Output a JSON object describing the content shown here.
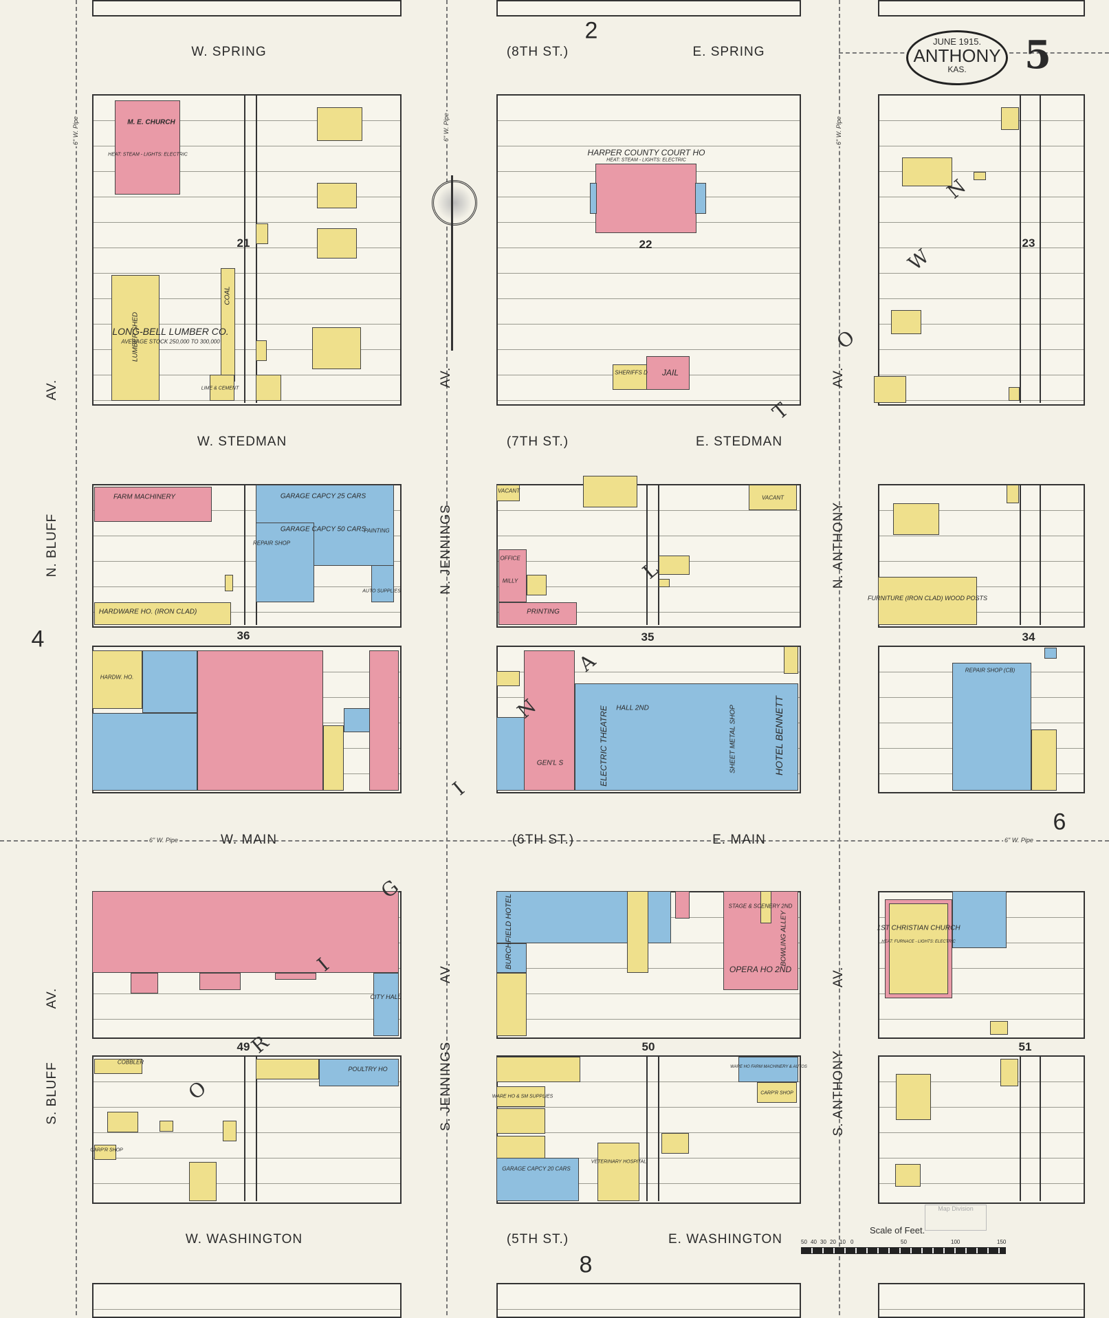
{
  "title": {
    "date": "JUNE 1915.",
    "city": "ANTHONY",
    "state": "KAS.",
    "sheet_number": "5"
  },
  "streets": {
    "w_spring": "W. SPRING",
    "spring_alt": "(8TH ST.)",
    "e_spring": "E. SPRING",
    "w_stedman": "W. STEDMAN",
    "stedman_alt": "(7TH ST.)",
    "e_stedman": "E. STEDMAN",
    "w_main": "W. MAIN",
    "main_alt": "(6TH ST.)",
    "e_main": "E. MAIN",
    "w_washington": "W. WASHINGTON",
    "washington_alt": "(5TH ST.)",
    "e_washington": "E. WASHINGTON",
    "av": "AV.",
    "n_bluff": "N. BLUFF",
    "s_bluff": "S. BLUFF",
    "n_jennings": "N. JENNINGS",
    "s_jennings": "S. JENNINGS",
    "n_anthony": "N. ANTHONY",
    "s_anthony": "S. ANTHONY"
  },
  "adjoining_sheets": [
    "2",
    "4",
    "6",
    "8"
  ],
  "blocks": [
    "21",
    "22",
    "23",
    "36",
    "35",
    "34",
    "49",
    "50",
    "51"
  ],
  "overlay_letters": [
    "O",
    "R",
    "I",
    "G",
    "I",
    "N",
    "A",
    "L",
    "T",
    "O",
    "W",
    "N"
  ],
  "water_pipe": "6\" W. Pipe",
  "buildings": {
    "church": "M. E. CHURCH",
    "church_heat": "HEAT: STEAM - LIGHTS: ELECTRIC",
    "lumber": "LONG-BELL LUMBER CO.",
    "lumber_stock": "AVERAGE STOCK 250,000 TO 300,000",
    "lumber_shed": "LUMBER SHED",
    "coal": "COAL",
    "lime_cement": "LIME & CEMENT",
    "courthouse": "HARPER COUNTY COURT HO",
    "courthouse_heat": "HEAT: STEAM - LIGHTS: ELECTRIC",
    "jail": "JAIL",
    "sheriffs": "SHERIFFS D",
    "farm_machinery": "FARM MACHINERY",
    "hardware_ironclad": "HARDWARE HO. (IRON CLAD)",
    "garage_25": "GARAGE CAPCY 25 CARS",
    "garage_50": "GARAGE CAPCY 50 CARS",
    "repair_shop": "REPAIR SHOP",
    "painting": "PAINTING",
    "auto_supplies": "AUTO SUPPLIES",
    "vacant": "VACANT",
    "printing": "PRINTING",
    "office": "OFFICE",
    "milly": "MILLY",
    "furniture": "FURNITURE (IRON CLAD) WOOD POSTS",
    "hardware": "HARDW. HO.",
    "hall": "HALL 2ND",
    "electric_theatre": "ELECTRIC THEATRE",
    "gen_s": "GEN'L S",
    "sheet_metal": "SHEET METAL SHOP",
    "hotel_bennett": "HOTEL BENNETT",
    "repair_shop_cb": "REPAIR SHOP (CB)",
    "burchfield": "BURCHFIELD HOTEL",
    "opera": "OPERA HO 2ND",
    "stage": "STAGE & SCENERY 2ND",
    "bowling": "BOWLING ALLEY",
    "christian_church": "1ST CHRISTIAN CHURCH",
    "christian_heat": "HEAT: FURNACE - LIGHTS: ELECTRIC",
    "city_hall": "CITY HALL",
    "poultry": "POULTRY HO",
    "cobbler": "COBBLER",
    "carp_shop": "CARP'R SHOP",
    "garage_20": "GARAGE CAPCY 20 CARS",
    "veterinary": "VETERINARY HOSPITAL",
    "ware_ho": "WARE HO & SM SUPPLIES",
    "farm_mach_ho": "WARE HO FARM MACHINERY & AUTOS"
  },
  "scale": {
    "title": "Scale of Feet.",
    "ticks": [
      "50",
      "40",
      "30",
      "20",
      "10",
      "0",
      "50",
      "100",
      "150"
    ]
  },
  "stamp": {
    "text": "Map Division"
  },
  "colors": {
    "brick": "#e99aa7",
    "frame": "#efe08c",
    "stone_concrete": "#8fbfdf",
    "paper": "#f3f1e7"
  }
}
